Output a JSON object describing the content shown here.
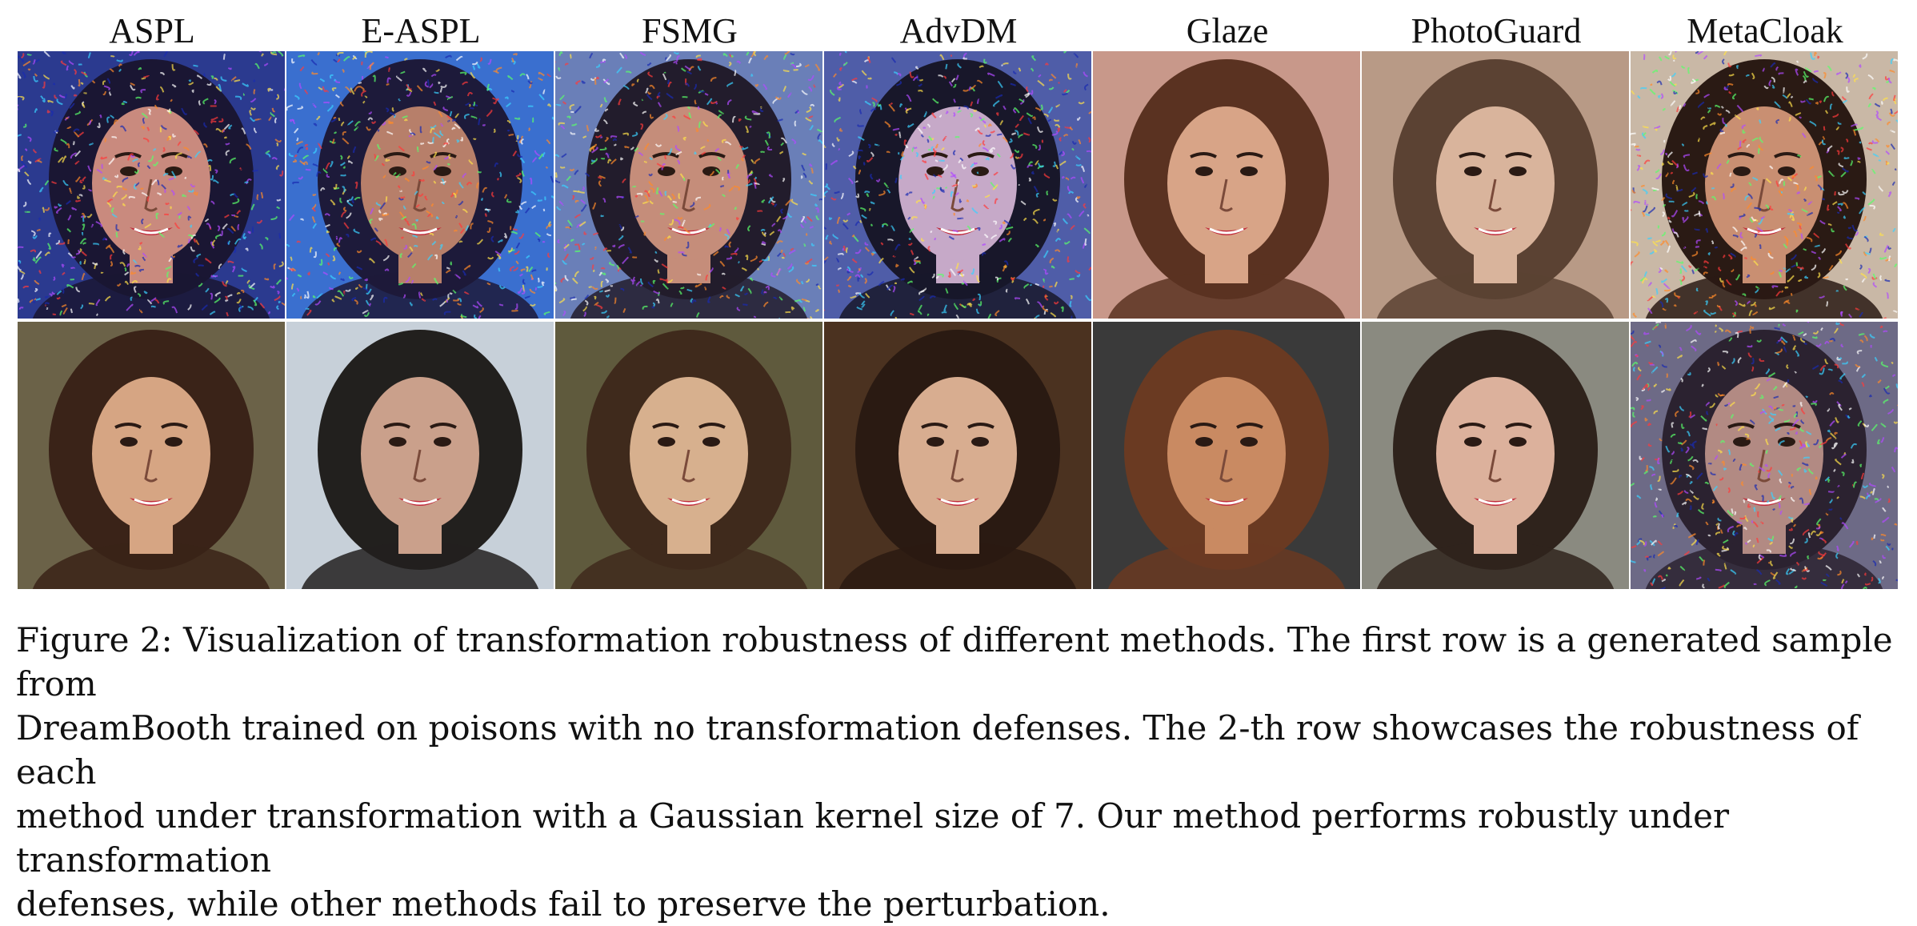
{
  "figure": {
    "columns": [
      "ASPL",
      "E-ASPL",
      "FSMG",
      "AdvDM",
      "Glaze",
      "PhotoGuard",
      "MetaCloak"
    ],
    "rows": [
      {
        "tiles": [
          {
            "kind": "noisy",
            "bg": "#2b3a8f",
            "skin": "#c98a7e",
            "hair": "#1a1633"
          },
          {
            "kind": "noisy",
            "bg": "#3a6fcf",
            "skin": "#b77f6a",
            "hair": "#1d1a3a"
          },
          {
            "kind": "noisy",
            "bg": "#6a7fb8",
            "skin": "#c58d7a",
            "hair": "#221c2c"
          },
          {
            "kind": "noisy",
            "bg": "#4f5da8",
            "skin": "#c6a9c8",
            "hair": "#18172a"
          },
          {
            "kind": "clean",
            "bg": "#c8988a",
            "skin": "#d8a487",
            "hair": "#5a3221"
          },
          {
            "kind": "clean",
            "bg": "#b89a86",
            "skin": "#d9b49c",
            "hair": "#5b4233"
          },
          {
            "kind": "noisy",
            "bg": "#c9b8a6",
            "skin": "#c98f72",
            "hair": "#2a1a14"
          }
        ]
      },
      {
        "tiles": [
          {
            "kind": "clean",
            "bg": "#6b6248",
            "skin": "#d6a583",
            "hair": "#3a2318"
          },
          {
            "kind": "clean",
            "bg": "#c7d0d9",
            "skin": "#caa08b",
            "hair": "#22201e"
          },
          {
            "kind": "clean",
            "bg": "#5f5a3d",
            "skin": "#d7b08e",
            "hair": "#3f2a1c"
          },
          {
            "kind": "clean",
            "bg": "#4b3220",
            "skin": "#d8ad90",
            "hair": "#2a1a12"
          },
          {
            "kind": "clean",
            "bg": "#3a3a3a",
            "skin": "#c98a62",
            "hair": "#6a3a22"
          },
          {
            "kind": "clean",
            "bg": "#8a8a80",
            "skin": "#dcb19c",
            "hair": "#2f231c"
          },
          {
            "kind": "noisy",
            "bg": "#6d6a86",
            "skin": "#b28a83",
            "hair": "#2b2230"
          }
        ]
      }
    ]
  },
  "caption": {
    "lines": [
      "Figure 2: Visualization of transformation robustness of different methods. The first row is a generated sample from",
      "DreamBooth trained on poisons with no transformation defenses. The 2-th row showcases the robustness of each",
      "method under transformation with a Gaussian kernel size of 7. Our method performs robustly under transformation",
      "defenses, while other methods fail to preserve the perturbation."
    ]
  }
}
